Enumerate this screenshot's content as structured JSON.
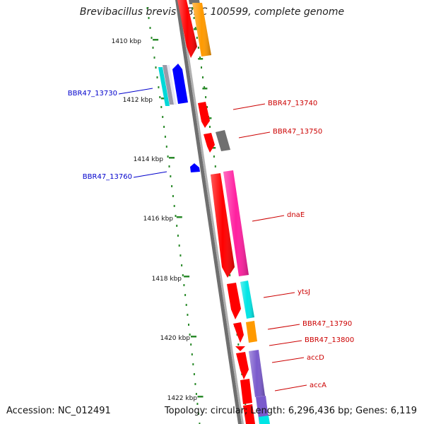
{
  "title": "Brevibacillus brevis NBRC 100599, complete genome",
  "footer": {
    "accession": "Accession: NC_012491",
    "summary": "Topology: circular; Length: 6,296,436 bp; Genes: 6,119"
  },
  "ruler": {
    "labels": [
      "1410 kbp",
      "1412 kbp",
      "1414 kbp",
      "1416 kbp",
      "1418 kbp",
      "1420 kbp",
      "1422 kbp"
    ]
  },
  "gene_labels": {
    "left": [
      "BBR47_13730",
      "BBR47_13760"
    ],
    "right": [
      "BBR47_13740",
      "BBR47_13750",
      "dnaE",
      "ytsJ",
      "BBR47_13790",
      "BBR47_13800",
      "accD",
      "accA"
    ]
  },
  "colors": {
    "backbone": "#8a8a8a",
    "ruler_tick": "#2a8a2a",
    "label_forward": "#cc0000",
    "label_reverse": "#0000cc",
    "red": "#ff0000",
    "orange": "#ff9a00",
    "magenta": "#ff1fa0",
    "cyan": "#00e5e5",
    "blue": "#0000ff",
    "gray": "#707070",
    "purple": "#7a5acc"
  }
}
